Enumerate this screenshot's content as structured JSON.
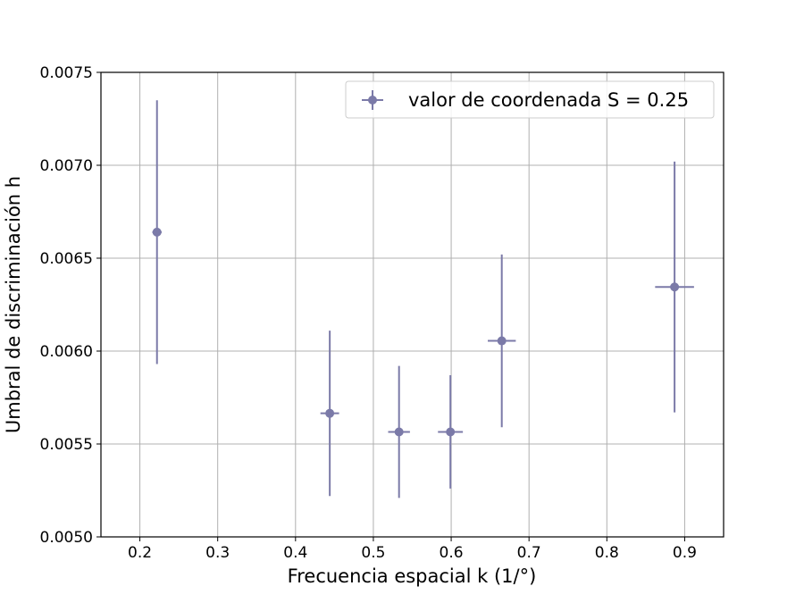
{
  "chart_data": {
    "type": "scatter",
    "title": "",
    "xlabel": "Frecuencia espacial k (1/°)",
    "ylabel": "Umbral de discriminación h",
    "xlim": [
      0.15,
      0.95
    ],
    "ylim": [
      0.005,
      0.0075
    ],
    "xticks": [
      0.2,
      0.3,
      0.4,
      0.5,
      0.6,
      0.7,
      0.8,
      0.9
    ],
    "xtick_labels": [
      "0.2",
      "0.3",
      "0.4",
      "0.5",
      "0.6",
      "0.7",
      "0.8",
      "0.9"
    ],
    "yticks": [
      0.005,
      0.0055,
      0.006,
      0.0065,
      0.007,
      0.0075
    ],
    "ytick_labels": [
      "0.0050",
      "0.0055",
      "0.0060",
      "0.0065",
      "0.0070",
      "0.0075"
    ],
    "grid": true,
    "legend": {
      "position": "top-right"
    },
    "color": "#7b7aa8",
    "series": [
      {
        "name": "valor de coordenada S = 0.25",
        "points": [
          {
            "x": 0.222,
            "y": 0.00664,
            "xerr": 0.006,
            "yerr": 0.00071
          },
          {
            "x": 0.444,
            "y": 0.005665,
            "xerr": 0.012,
            "yerr": 0.000445
          },
          {
            "x": 0.533,
            "y": 0.005565,
            "xerr": 0.014,
            "yerr": 0.000355
          },
          {
            "x": 0.599,
            "y": 0.005565,
            "xerr": 0.016,
            "yerr": 0.000305
          },
          {
            "x": 0.665,
            "y": 0.006055,
            "xerr": 0.018,
            "yerr": 0.000465
          },
          {
            "x": 0.887,
            "y": 0.006345,
            "xerr": 0.025,
            "yerr": 0.000675
          }
        ]
      }
    ]
  }
}
